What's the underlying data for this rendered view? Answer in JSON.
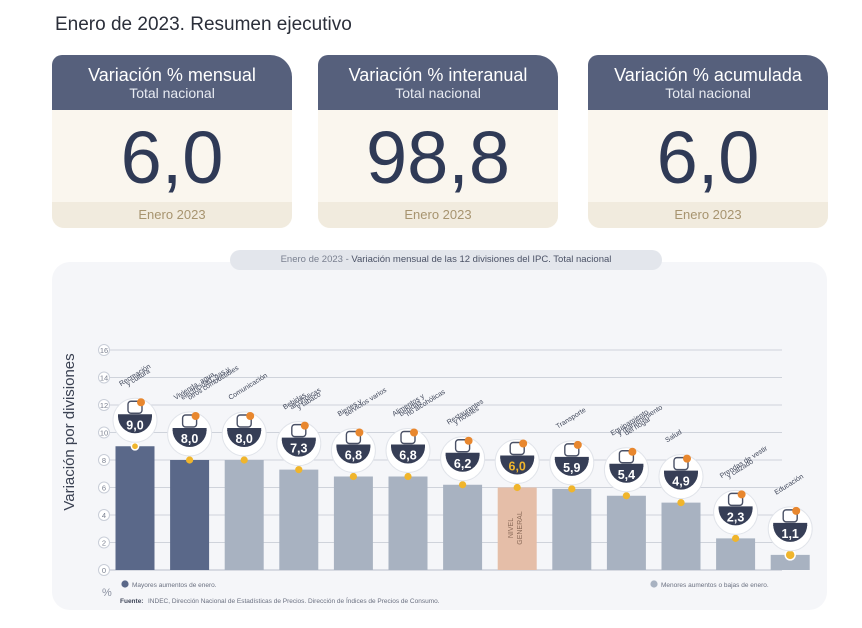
{
  "page_title": "Enero de 2023. Resumen ejecutivo",
  "kpis": [
    {
      "title": "Variación % mensual",
      "subtitle": "Total nacional",
      "value": "6,0",
      "period": "Enero 2023"
    },
    {
      "title": "Variación % interanual",
      "subtitle": "Total nacional",
      "value": "98,8",
      "period": "Enero 2023"
    },
    {
      "title": "Variación % acumulada",
      "subtitle": "Total nacional",
      "value": "6,0",
      "period": "Enero 2023"
    }
  ],
  "chart_data": {
    "type": "bar",
    "title_prefix": "Enero de 2023",
    "title_separator": " - ",
    "title": "Variación mensual de las 12 divisiones del IPC. Total nacional",
    "ylabel": "Variación por divisiones",
    "yunit": "%",
    "ylim": [
      0,
      16
    ],
    "yticks": [
      "0",
      "2",
      "4",
      "6",
      "8",
      "10",
      "12",
      "14",
      "16"
    ],
    "grid": true,
    "categories": [
      "Recreación y cultura",
      "Vivienda, agua, electricidad, gas y otros combustibles",
      "Comunicación",
      "Bebidas alcohólicas y tabaco",
      "Bienes y servicios varios",
      "Alimentos y bebidas no alcohólicas",
      "Restaurantes y hoteles",
      "Nivel general",
      "Transporte",
      "Equipamiento y mantenimiento del hogar",
      "Salud",
      "Prendas de vestir y calzado",
      "Educación"
    ],
    "category_label_lines": [
      [
        "Recreación",
        "y cultura"
      ],
      [
        "Vivienda, agua,",
        "electricidad, gas y",
        "otros combustibles"
      ],
      [
        "Comunicación"
      ],
      [
        "Bebidas",
        "alcohólicas",
        "y tabaco"
      ],
      [
        "Bienes y",
        "servicios varios"
      ],
      [
        "Alimentos y",
        "bebidas",
        "no alcohólicas"
      ],
      [
        "Restaurantes",
        "y hoteles"
      ],
      [
        "NIVEL",
        "GENERAL"
      ],
      [
        "Transporte"
      ],
      [
        "Equipamiento",
        "y mantenimiento",
        "del hogar"
      ],
      [
        "Salud"
      ],
      [
        "Prendas de vestir",
        "y calzado"
      ],
      [
        "Educación"
      ]
    ],
    "values": [
      9.0,
      8.0,
      8.0,
      7.3,
      6.8,
      6.8,
      6.2,
      6.0,
      5.9,
      5.4,
      4.9,
      2.3,
      1.1
    ],
    "value_labels": [
      "9,0",
      "8,0",
      "8,0",
      "7,3",
      "6,8",
      "6,8",
      "6,2",
      "6,0",
      "5,9",
      "5,4",
      "4,9",
      "2,3",
      "1,1"
    ],
    "groups": [
      "mayores",
      "mayores",
      "menores",
      "menores",
      "menores",
      "menores",
      "menores",
      "general",
      "menores",
      "menores",
      "menores",
      "menores",
      "menores"
    ],
    "icons": [
      "beach-umbrella-icon",
      "lightbulb-faucet-icon",
      "smartphone-icon",
      "wine-bottle-icon",
      "scissors-comb-icon",
      "food-basket-icon",
      "cutlery-plate-icon",
      "mixed-basket-icon",
      "bus-icon",
      "washing-machine-icon",
      "medical-cross-icon",
      "tshirt-icon",
      "books-icon"
    ],
    "colors": {
      "mayores": "#5a6889",
      "menores": "#a8b2c1",
      "general": "#e5bea8",
      "marker": "#f0b52c",
      "grid": "#cfd3db",
      "badge": "#363e56"
    },
    "legend": [
      {
        "label": "Mayores aumentos de enero.",
        "color": "#5a6889"
      },
      {
        "label": "Menores aumentos o bajas de enero.",
        "color": "#a8b2c1"
      }
    ],
    "source_label": "Fuente:",
    "source_text": "INDEC, Dirección Nacional de Estadísticas de Precios. Dirección de Índices de Precios de Consumo."
  }
}
